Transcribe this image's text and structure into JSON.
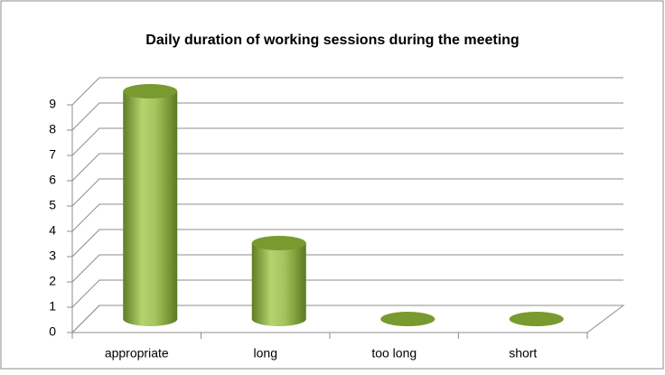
{
  "chart_data": {
    "type": "bar",
    "title": "Daily duration of working sessions during the meeting",
    "categories": [
      "appropriate",
      "long",
      "too long",
      "short"
    ],
    "values": [
      9,
      3,
      0,
      0
    ],
    "color": "#9bbb59",
    "ylim": [
      0,
      9
    ],
    "yticks": [
      0,
      1,
      2,
      3,
      4,
      5,
      6,
      7,
      8,
      9
    ],
    "grid": true
  }
}
